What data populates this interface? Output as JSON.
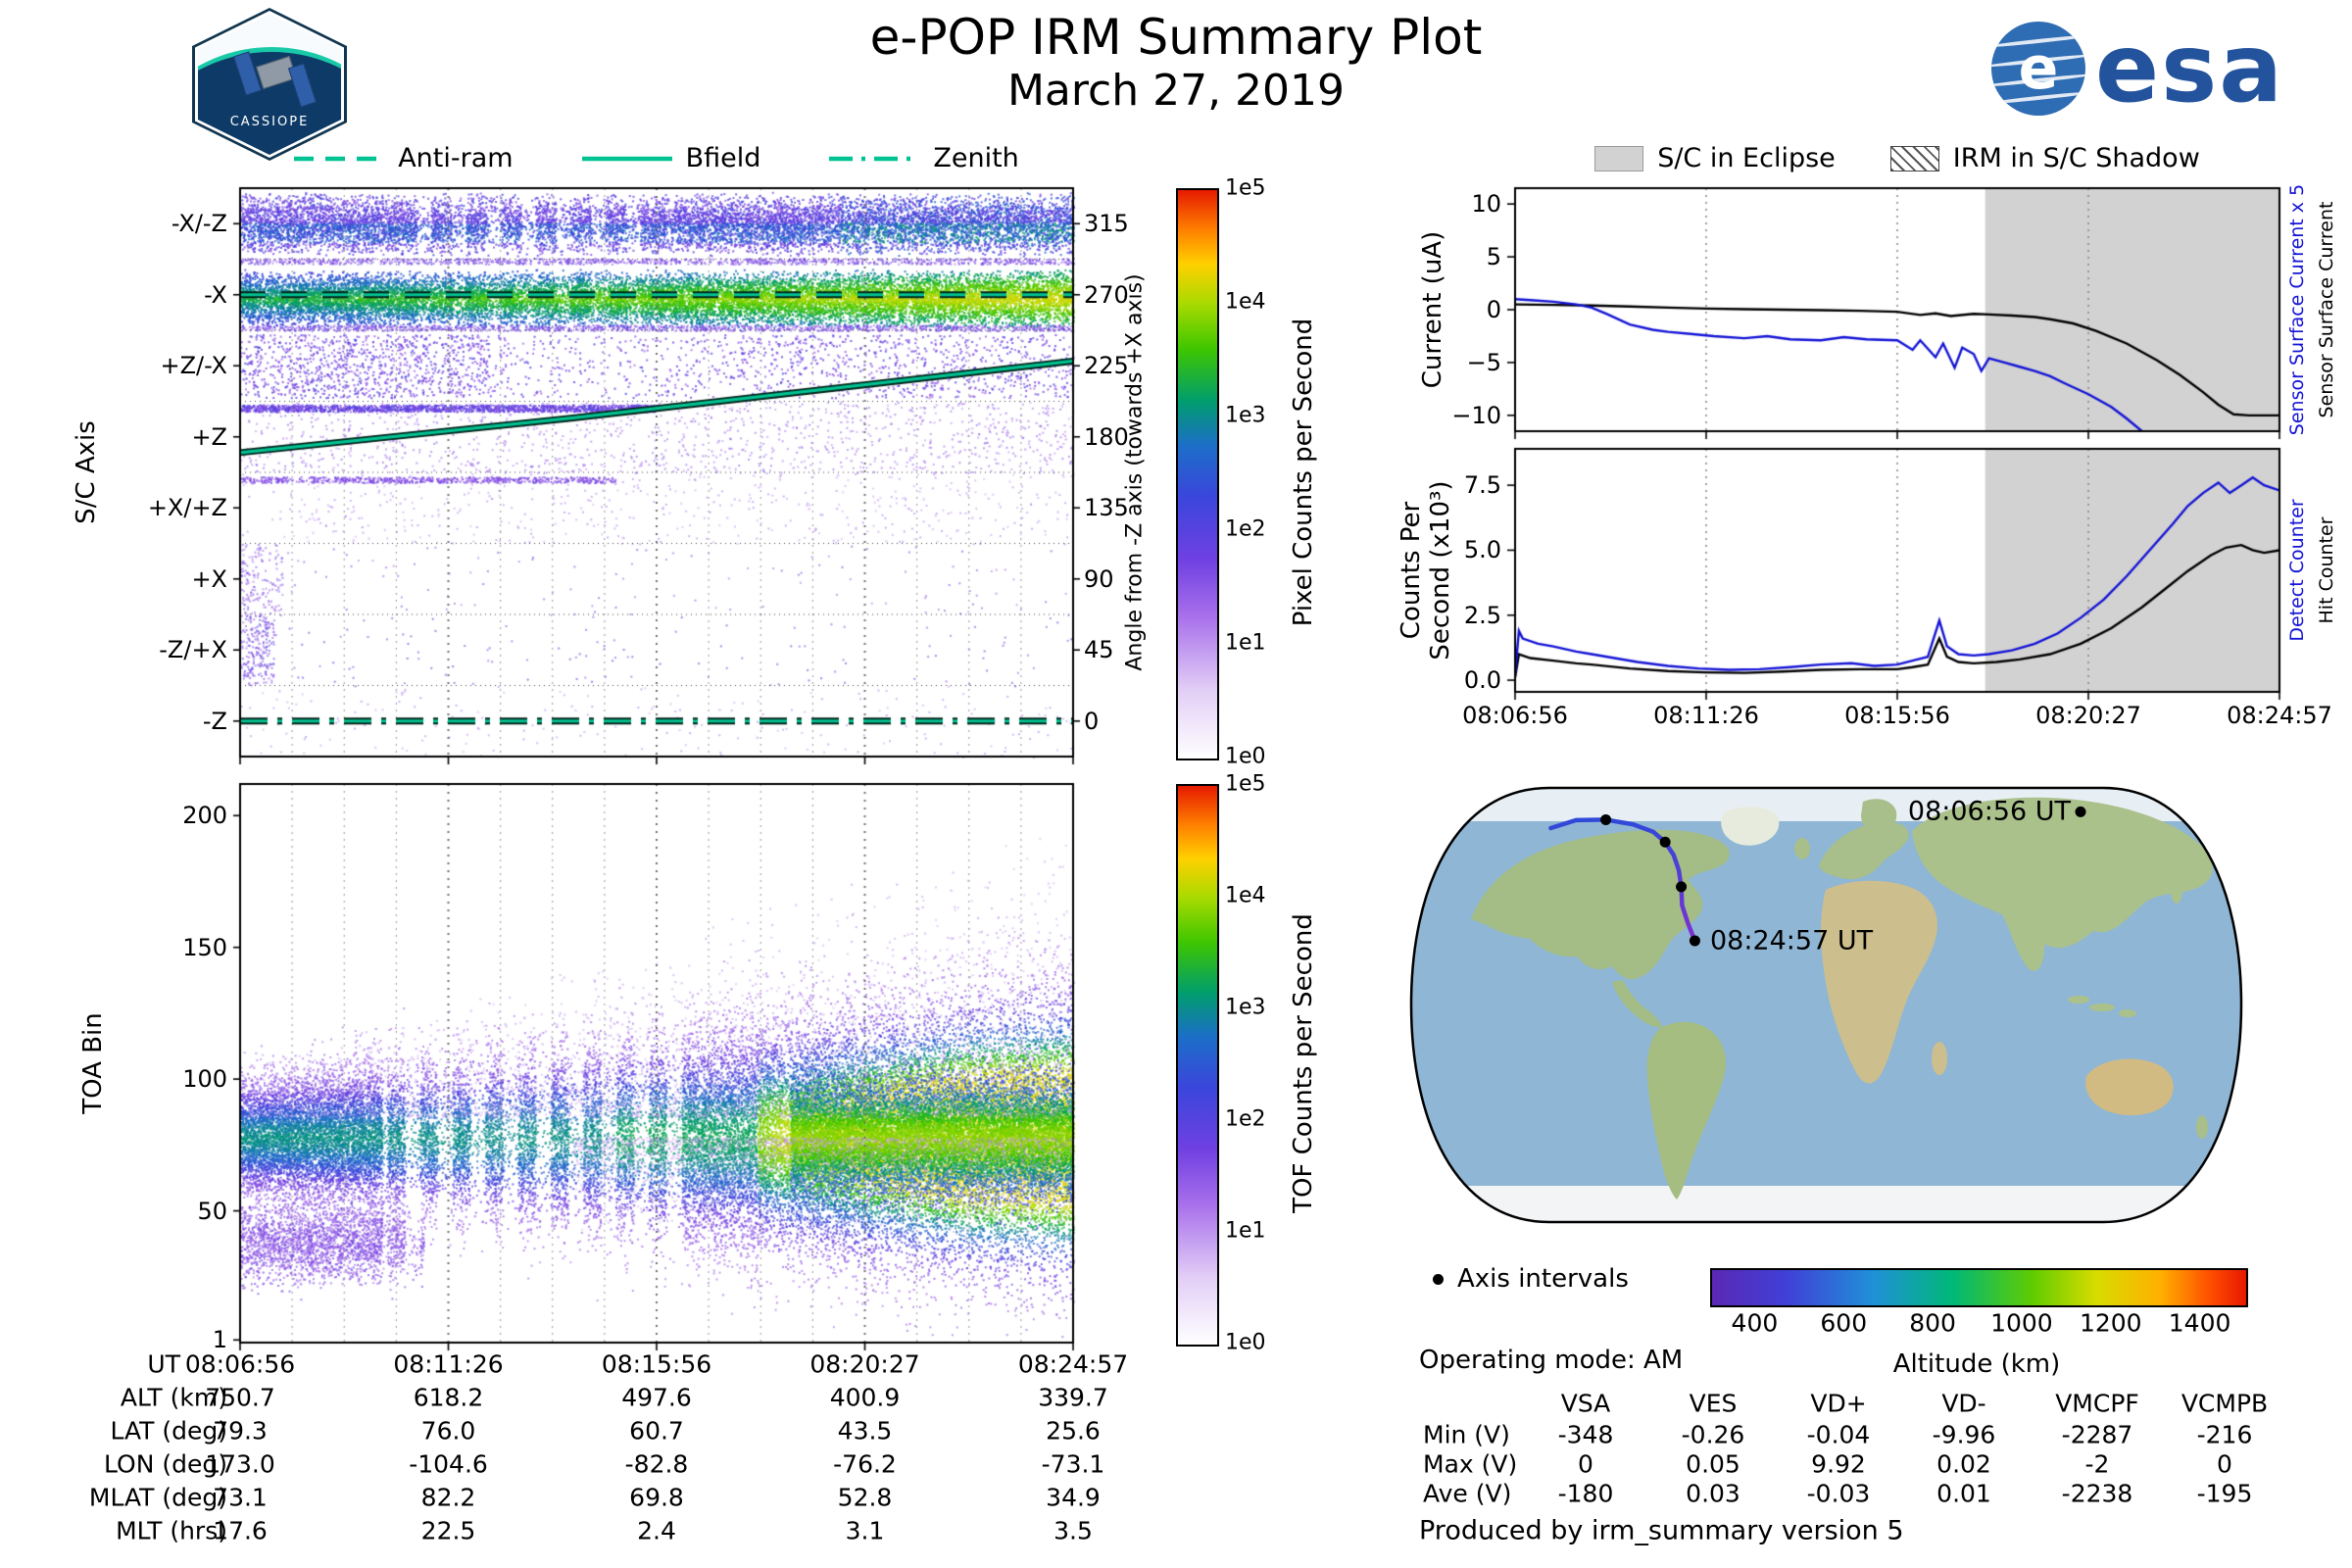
{
  "header": {
    "title": "e-POP IRM Summary Plot",
    "date": "March 27, 2019",
    "patch_text": "CASSIOPE",
    "esa_text": "esa"
  },
  "colors": {
    "teal": "#00C292",
    "blue": "#1414D6",
    "black": "#000000",
    "eclipse_gray": "#D2D2D2"
  },
  "left_legend": {
    "items": [
      {
        "label": "Anti-ram",
        "style": "dashed"
      },
      {
        "label": "Bfield",
        "style": "solid"
      },
      {
        "label": "Zenith",
        "style": "dashdot"
      }
    ]
  },
  "right_legend": {
    "eclipse_label": "S/C in Eclipse",
    "shadow_label": "IRM in S/C Shadow"
  },
  "time_axis": {
    "ticks": [
      "08:06:56",
      "08:11:26",
      "08:15:56",
      "08:20:27",
      "08:24:57"
    ]
  },
  "footer": {
    "operating_mode": "Operating mode: AM",
    "produced_by": "Produced by irm_summary version 5"
  },
  "chart_data": [
    {
      "id": "sc_axis_spectrogram",
      "type": "heatmap",
      "ylabel": "S/C Axis",
      "y_categories": [
        "-X/-Z",
        "-X",
        "+Z/-X",
        "+Z",
        "+X/+Z",
        "+X",
        "-Z/+X",
        "-Z"
      ],
      "right_axis": {
        "label": "Angle from -Z axis (towards +X axis)",
        "ticks": [
          "315",
          "270",
          "225",
          "180",
          "135",
          "90",
          "45",
          "0"
        ]
      },
      "x_ticks": [
        "08:06:56",
        "08:11:26",
        "08:15:56",
        "08:20:27",
        "08:24:57"
      ],
      "colorbar": {
        "label": "Pixel Counts per Second",
        "ticks": [
          "1e5",
          "1e4",
          "1e3",
          "1e2",
          "1e1",
          "1e0"
        ]
      },
      "overlays": [
        {
          "name": "Anti-ram",
          "style": "dashed",
          "angle_deg": 270
        },
        {
          "name": "Bfield",
          "style": "solid",
          "points_angle_deg": [
            [
              0,
              170
            ],
            [
              0.2,
              181
            ],
            [
              0.4,
              192
            ],
            [
              0.55,
              201
            ],
            [
              0.7,
              210
            ],
            [
              0.85,
              219
            ],
            [
              1,
              228
            ]
          ]
        },
        {
          "name": "Zenith",
          "style": "dashdot",
          "angle_deg": 0
        }
      ],
      "description": "Pixel counts per second vs spacecraft axis; intense bands along -X/-Z and -X rows, brightening toward end of pass; sparse speckle on other axes."
    },
    {
      "id": "toa_spectrogram",
      "type": "heatmap",
      "ylabel": "TOA Bin",
      "y_ticks": [
        200,
        150,
        100,
        50,
        1
      ],
      "colorbar": {
        "label": "TOF Counts per Second",
        "ticks": [
          "1e5",
          "1e4",
          "1e3",
          "1e2",
          "1e1",
          "1e0"
        ]
      },
      "features": {
        "main_band_center_bin": 78,
        "main_band_spread_bins": [
          11,
          27
        ],
        "bright_core_x_range": [
          0.65,
          1.0
        ],
        "secondary_band": {
          "center_bin": 38,
          "x_range": [
            0.0,
            0.22
          ]
        },
        "striped_gap_x_range": [
          0.17,
          0.53
        ]
      }
    },
    {
      "id": "current_chart",
      "type": "line",
      "ylabel": "Current (uA)",
      "ylim": [
        -11.5,
        11.5
      ],
      "yticks": [
        [
          10,
          "10"
        ],
        [
          5,
          "5"
        ],
        [
          0,
          "0"
        ],
        [
          -5,
          "−5"
        ],
        [
          -10,
          "−10"
        ]
      ],
      "right_labels": [
        {
          "text": "Sensor Surface Current x 5",
          "color": "#1414D6"
        },
        {
          "text": "Sensor Surface Current",
          "color": "#000000"
        }
      ],
      "eclipse_start_fraction": 0.615,
      "series": [
        {
          "name": "Sensor Surface Current",
          "color": "#000000",
          "points": [
            [
              0,
              0.5
            ],
            [
              0.05,
              0.45
            ],
            [
              0.1,
              0.4
            ],
            [
              0.15,
              0.3
            ],
            [
              0.2,
              0.2
            ],
            [
              0.25,
              0.1
            ],
            [
              0.3,
              0.05
            ],
            [
              0.35,
              0
            ],
            [
              0.4,
              -0.05
            ],
            [
              0.45,
              -0.1
            ],
            [
              0.5,
              -0.2
            ],
            [
              0.53,
              -0.5
            ],
            [
              0.55,
              -0.35
            ],
            [
              0.57,
              -0.6
            ],
            [
              0.6,
              -0.4
            ],
            [
              0.62,
              -0.45
            ],
            [
              0.65,
              -0.55
            ],
            [
              0.68,
              -0.7
            ],
            [
              0.7,
              -0.9
            ],
            [
              0.73,
              -1.3
            ],
            [
              0.76,
              -2.0
            ],
            [
              0.8,
              -3.2
            ],
            [
              0.84,
              -4.8
            ],
            [
              0.87,
              -6.2
            ],
            [
              0.9,
              -7.8
            ],
            [
              0.92,
              -9.0
            ],
            [
              0.94,
              -9.9
            ],
            [
              0.96,
              -10
            ],
            [
              1,
              -10
            ]
          ]
        },
        {
          "name": "Sensor Surface Current x 5",
          "color": "#1414D6",
          "points": [
            [
              0,
              1.0
            ],
            [
              0.02,
              0.9
            ],
            [
              0.05,
              0.75
            ],
            [
              0.08,
              0.5
            ],
            [
              0.1,
              0.2
            ],
            [
              0.12,
              -0.4
            ],
            [
              0.15,
              -1.4
            ],
            [
              0.18,
              -1.9
            ],
            [
              0.2,
              -2.1
            ],
            [
              0.23,
              -2.3
            ],
            [
              0.26,
              -2.5
            ],
            [
              0.3,
              -2.7
            ],
            [
              0.33,
              -2.5
            ],
            [
              0.36,
              -2.8
            ],
            [
              0.4,
              -2.9
            ],
            [
              0.43,
              -2.6
            ],
            [
              0.46,
              -2.8
            ],
            [
              0.5,
              -2.9
            ],
            [
              0.52,
              -3.8
            ],
            [
              0.53,
              -2.9
            ],
            [
              0.55,
              -4.5
            ],
            [
              0.56,
              -3.2
            ],
            [
              0.575,
              -5.5
            ],
            [
              0.585,
              -3.6
            ],
            [
              0.6,
              -4.2
            ],
            [
              0.61,
              -5.8
            ],
            [
              0.62,
              -4.6
            ],
            [
              0.64,
              -5.0
            ],
            [
              0.66,
              -5.4
            ],
            [
              0.68,
              -5.8
            ],
            [
              0.7,
              -6.3
            ],
            [
              0.72,
              -7.0
            ],
            [
              0.75,
              -8.0
            ],
            [
              0.78,
              -9.2
            ],
            [
              0.8,
              -10.3
            ],
            [
              0.82,
              -11.5
            ],
            [
              0.84,
              -13.0
            ]
          ]
        }
      ]
    },
    {
      "id": "counts_chart",
      "type": "line",
      "ylabel_lines": [
        "Counts Per",
        "Second (x10³)"
      ],
      "ylim": [
        -0.45,
        8.9
      ],
      "yticks": [
        [
          7.5,
          "7.5"
        ],
        [
          5,
          "5.0"
        ],
        [
          2.5,
          "2.5"
        ],
        [
          0,
          "0.0"
        ]
      ],
      "right_labels": [
        {
          "text": "Detect Counter",
          "color": "#1414D6"
        },
        {
          "text": "Hit Counter",
          "color": "#000000"
        }
      ],
      "eclipse_start_fraction": 0.615,
      "x_ticks": [
        "08:06:56",
        "08:11:26",
        "08:15:56",
        "08:20:27",
        "08:24:57"
      ],
      "series": [
        {
          "name": "Hit Counter",
          "color": "#000000",
          "points": [
            [
              0,
              0.1
            ],
            [
              0.005,
              1.0
            ],
            [
              0.02,
              0.85
            ],
            [
              0.05,
              0.75
            ],
            [
              0.08,
              0.65
            ],
            [
              0.1,
              0.6
            ],
            [
              0.15,
              0.45
            ],
            [
              0.2,
              0.35
            ],
            [
              0.25,
              0.3
            ],
            [
              0.3,
              0.28
            ],
            [
              0.35,
              0.33
            ],
            [
              0.4,
              0.4
            ],
            [
              0.45,
              0.42
            ],
            [
              0.5,
              0.42
            ],
            [
              0.52,
              0.5
            ],
            [
              0.54,
              0.6
            ],
            [
              0.555,
              1.6
            ],
            [
              0.565,
              0.9
            ],
            [
              0.58,
              0.7
            ],
            [
              0.6,
              0.65
            ],
            [
              0.63,
              0.7
            ],
            [
              0.66,
              0.8
            ],
            [
              0.7,
              1.0
            ],
            [
              0.74,
              1.4
            ],
            [
              0.78,
              2.0
            ],
            [
              0.82,
              2.8
            ],
            [
              0.85,
              3.5
            ],
            [
              0.88,
              4.2
            ],
            [
              0.91,
              4.8
            ],
            [
              0.93,
              5.1
            ],
            [
              0.95,
              5.2
            ],
            [
              0.965,
              5.0
            ],
            [
              0.98,
              4.9
            ],
            [
              1,
              5.0
            ]
          ]
        },
        {
          "name": "Detect Counter",
          "color": "#1414D6",
          "points": [
            [
              0,
              0.2
            ],
            [
              0.005,
              1.9
            ],
            [
              0.01,
              1.6
            ],
            [
              0.03,
              1.4
            ],
            [
              0.05,
              1.3
            ],
            [
              0.08,
              1.1
            ],
            [
              0.1,
              1.0
            ],
            [
              0.13,
              0.85
            ],
            [
              0.16,
              0.7
            ],
            [
              0.2,
              0.55
            ],
            [
              0.24,
              0.45
            ],
            [
              0.28,
              0.4
            ],
            [
              0.32,
              0.42
            ],
            [
              0.36,
              0.5
            ],
            [
              0.4,
              0.6
            ],
            [
              0.44,
              0.65
            ],
            [
              0.47,
              0.55
            ],
            [
              0.5,
              0.6
            ],
            [
              0.52,
              0.75
            ],
            [
              0.54,
              0.9
            ],
            [
              0.555,
              2.3
            ],
            [
              0.565,
              1.3
            ],
            [
              0.58,
              1.0
            ],
            [
              0.6,
              0.95
            ],
            [
              0.62,
              1.0
            ],
            [
              0.65,
              1.15
            ],
            [
              0.68,
              1.4
            ],
            [
              0.71,
              1.8
            ],
            [
              0.74,
              2.4
            ],
            [
              0.77,
              3.1
            ],
            [
              0.8,
              4.0
            ],
            [
              0.83,
              5.0
            ],
            [
              0.86,
              6.0
            ],
            [
              0.88,
              6.7
            ],
            [
              0.9,
              7.2
            ],
            [
              0.92,
              7.6
            ],
            [
              0.935,
              7.2
            ],
            [
              0.95,
              7.5
            ],
            [
              0.965,
              7.8
            ],
            [
              0.98,
              7.5
            ],
            [
              1,
              7.3
            ]
          ]
        }
      ]
    },
    {
      "id": "ground_track_map",
      "type": "map",
      "start_label": "08:06:56 UT",
      "end_label": "08:24:57 UT",
      "axis_intervals_label": "Axis intervals",
      "colorbar": {
        "label": "Altitude (km)",
        "ticks": [
          400,
          600,
          800,
          1000,
          1200,
          1400
        ],
        "range": [
          300,
          1500
        ]
      },
      "track": [
        [
          0.175,
          0.12
        ],
        [
          0.205,
          0.103
        ],
        [
          0.24,
          0.102
        ],
        [
          0.272,
          0.112
        ],
        [
          0.296,
          0.128
        ],
        [
          0.31,
          0.15
        ],
        [
          0.32,
          0.178
        ],
        [
          0.326,
          0.21
        ],
        [
          0.329,
          0.246
        ],
        [
          0.33,
          0.286
        ],
        [
          0.337,
          0.325
        ],
        [
          0.345,
          0.362
        ]
      ],
      "dot_indices": [
        2,
        5,
        8,
        11
      ],
      "start_dot": [
        0.8,
        0.085
      ]
    },
    {
      "id": "ephemeris_table",
      "type": "table",
      "row_labels": [
        "UT",
        "ALT (km)",
        "LAT (deg)",
        "LON (deg)",
        "MLAT (deg)",
        "MLT (hrs)"
      ],
      "rows": [
        [
          "08:06:56",
          "08:11:26",
          "08:15:56",
          "08:20:27",
          "08:24:57"
        ],
        [
          "750.7",
          "618.2",
          "497.6",
          "400.9",
          "339.7"
        ],
        [
          "79.3",
          "76.0",
          "60.7",
          "43.5",
          "25.6"
        ],
        [
          "173.0",
          "-104.6",
          "-82.8",
          "-76.2",
          "-73.1"
        ],
        [
          "73.1",
          "82.2",
          "69.8",
          "52.8",
          "34.9"
        ],
        [
          "17.6",
          "22.5",
          "2.4",
          "3.1",
          "3.5"
        ]
      ]
    },
    {
      "id": "voltage_table",
      "type": "table",
      "columns": [
        "",
        "VSA",
        "VES",
        "VD+",
        "VD-",
        "VMCPF",
        "VCMPB"
      ],
      "rows": [
        [
          "Min (V)",
          "-348",
          "-0.26",
          "-0.04",
          "-9.96",
          "-2287",
          "-216"
        ],
        [
          "Max (V)",
          "0",
          "0.05",
          "9.92",
          "0.02",
          "-2",
          "0"
        ],
        [
          "Ave (V)",
          "-180",
          "0.03",
          "-0.03",
          "0.01",
          "-2238",
          "-195"
        ]
      ]
    }
  ]
}
